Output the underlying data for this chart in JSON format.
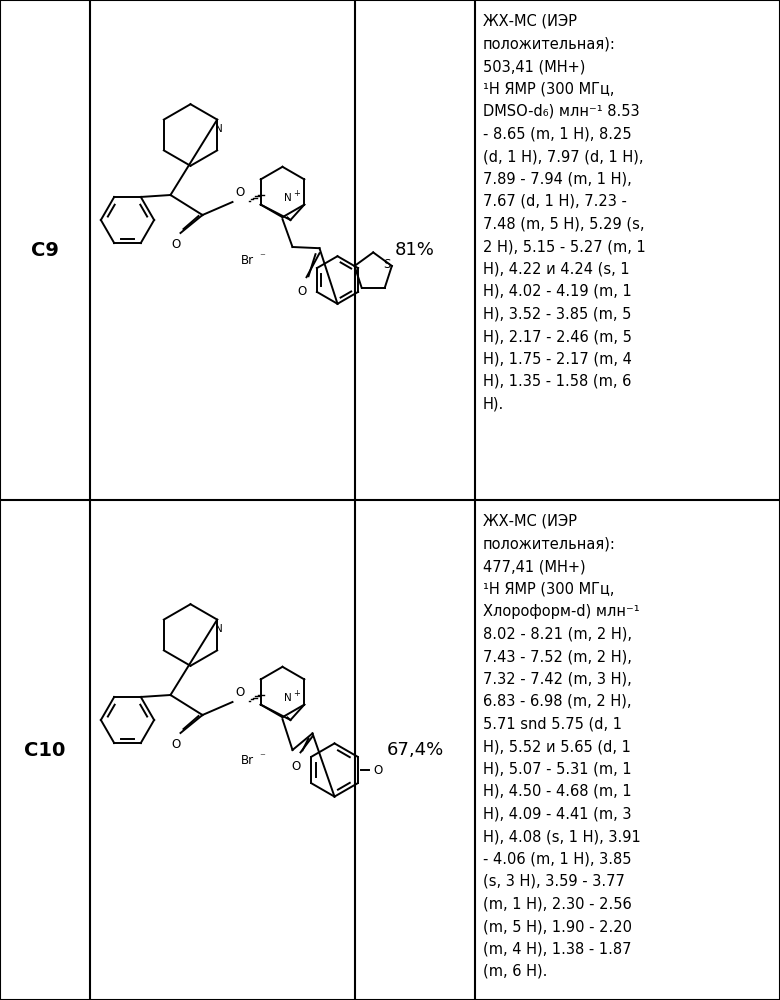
{
  "rows": [
    {
      "compound": "C9",
      "yield": "81%",
      "nmr_lines": [
        "ЖХ-МС (ИЭР",
        "положительная):",
        "503,41 (МН+)",
        "¹Н ЯМР (300 МГц,",
        "DMSO-d₆) млн⁻¹ 8.53",
        "- 8.65 (m, 1 H), 8.25",
        "(d, 1 H), 7.97 (d, 1 H),",
        "7.89 - 7.94 (m, 1 H),",
        "7.67 (d, 1 H), 7.23 -",
        "7.48 (m, 5 H), 5.29 (s,",
        "2 H), 5.15 - 5.27 (m, 1",
        "H), 4.22 и 4.24 (s, 1",
        "H), 4.02 - 4.19 (m, 1",
        "H), 3.52 - 3.85 (m, 5",
        "H), 2.17 - 2.46 (m, 5",
        "H), 1.75 - 2.17 (m, 4",
        "H), 1.35 - 1.58 (m, 6",
        "H)."
      ]
    },
    {
      "compound": "C10",
      "yield": "67,4%",
      "nmr_lines": [
        "ЖХ-МС (ИЭР",
        "положительная):",
        "477,41 (МН+)",
        "¹Н ЯМР (300 МГц,",
        "Хлороформ-d) млн⁻¹",
        "8.02 - 8.21 (m, 2 H),",
        "7.43 - 7.52 (m, 2 H),",
        "7.32 - 7.42 (m, 3 H),",
        "6.83 - 6.98 (m, 2 H),",
        "5.71 snd 5.75 (d, 1",
        "H), 5.52 и 5.65 (d, 1",
        "H), 5.07 - 5.31 (m, 1",
        "H), 4.50 - 4.68 (m, 1",
        "H), 4.09 - 4.41 (m, 3",
        "H), 4.08 (s, 1 H), 3.91",
        "- 4.06 (m, 1 H), 3.85",
        "(s, 3 H), 3.59 - 3.77",
        "(m, 1 H), 2.30 - 2.56",
        "(m, 5 H), 1.90 - 2.20",
        "(m, 4 H), 1.38 - 1.87",
        "(m, 6 H)."
      ]
    }
  ],
  "bg_color": "#ffffff",
  "border_color": "#000000",
  "text_color": "#000000"
}
